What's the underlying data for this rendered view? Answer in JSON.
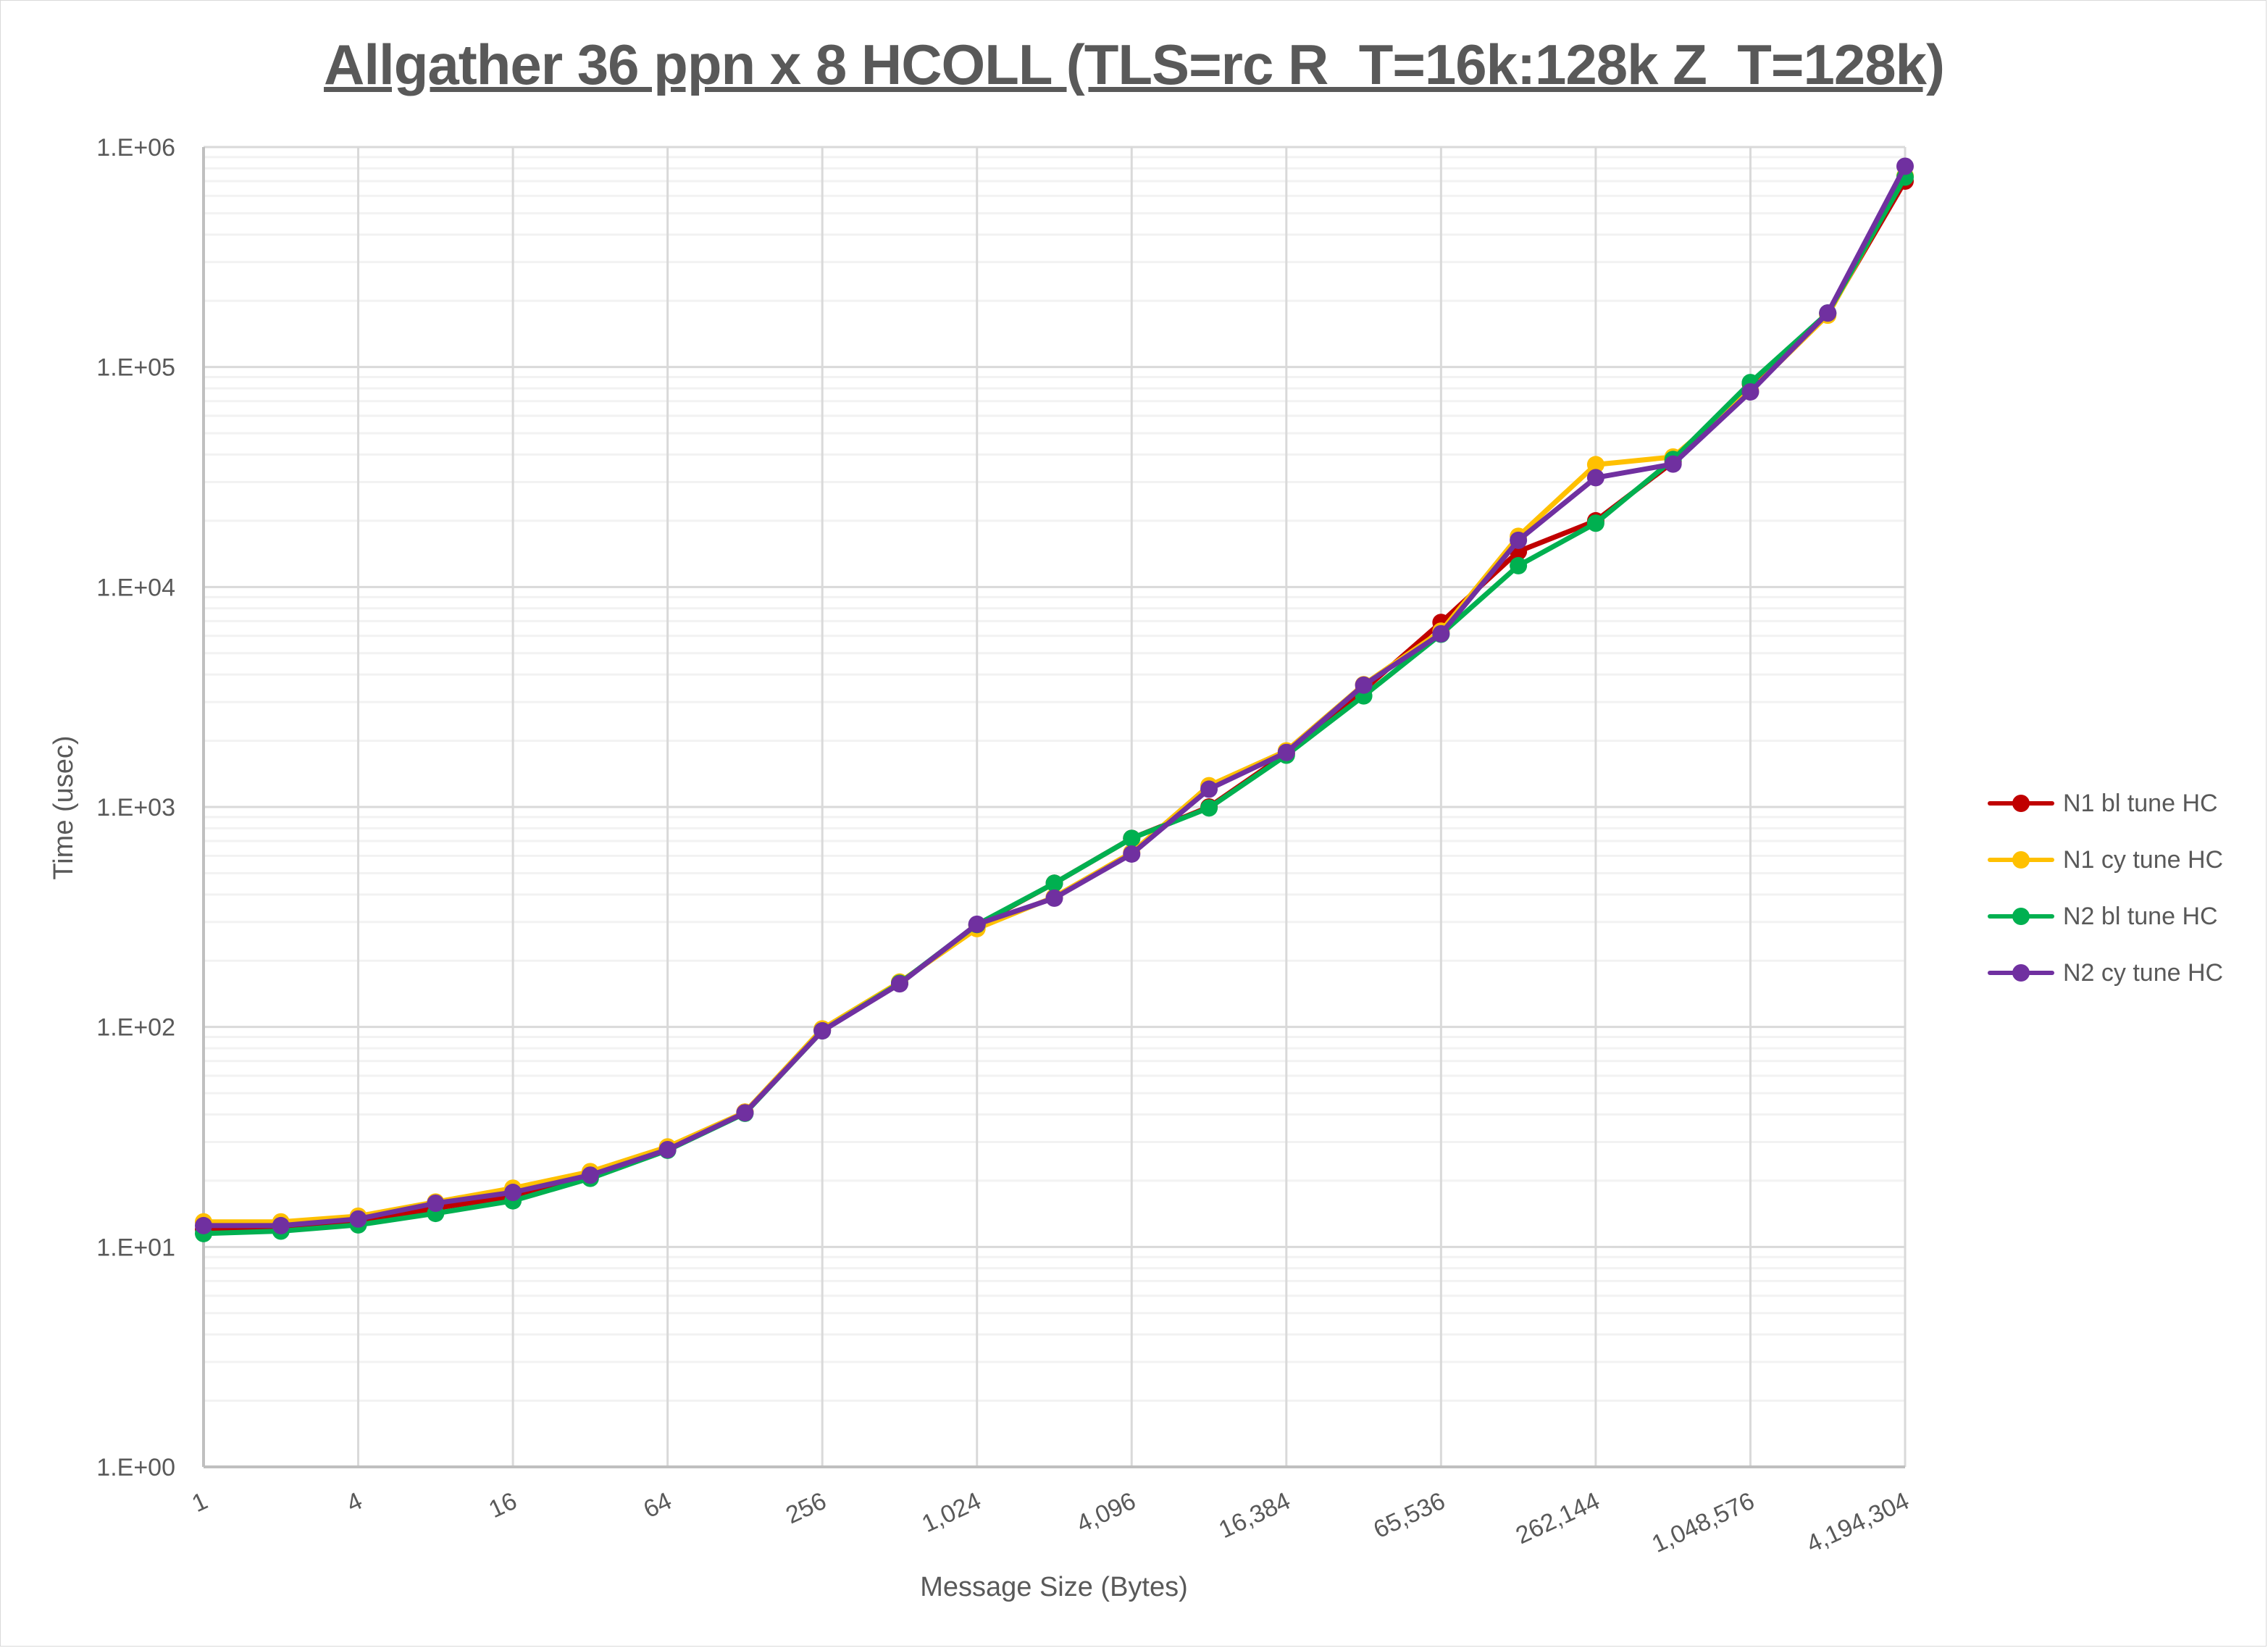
{
  "chart_data": {
    "type": "line",
    "title": "Allgather 36 ppn x 8 HCOLL (TLS=rc R_T=16k:128k Z_T=128k)",
    "xlabel": "Message Size (Bytes)",
    "ylabel": "Time (usec)",
    "xscale": "log2",
    "yscale": "log10",
    "ylim": [
      1,
      1000000
    ],
    "y_ticks": [
      "1.E+00",
      "1.E+01",
      "1.E+02",
      "1.E+03",
      "1.E+04",
      "1.E+05",
      "1.E+06"
    ],
    "x_tick_labels": [
      "1",
      "4",
      "16",
      "64",
      "256",
      "1,024",
      "4,096",
      "16,384",
      "65,536",
      "262,144",
      "1,048,576",
      "4,194,304"
    ],
    "x": [
      1,
      2,
      4,
      8,
      16,
      32,
      64,
      128,
      256,
      512,
      1024,
      2048,
      4096,
      8192,
      16384,
      32768,
      65536,
      131072,
      262144,
      524288,
      1048576,
      2097152,
      4194304
    ],
    "grid": true,
    "legend_position": "right",
    "series": [
      {
        "name": "N1 bl tune HC",
        "color": "#C00000",
        "values": [
          12.0,
          12.2,
          13.0,
          15.0,
          17.0,
          21.0,
          28.0,
          41.0,
          97.0,
          158.0,
          290.0,
          450.0,
          720.0,
          1000.0,
          1750.0,
          3400.0,
          6900.0,
          14500.0,
          20000.0,
          37000.0,
          84000.0,
          175000.0,
          700000.0
        ]
      },
      {
        "name": "N1 cy tune HC",
        "color": "#FFC000",
        "values": [
          13.0,
          13.0,
          13.8,
          16.0,
          18.5,
          22.0,
          28.5,
          41.0,
          98.0,
          160.0,
          280.0,
          390.0,
          620.0,
          1250.0,
          1800.0,
          3600.0,
          6300.0,
          17000.0,
          36000.0,
          39000.0,
          78000.0,
          172000.0,
          740000.0
        ]
      },
      {
        "name": "N2 bl tune HC",
        "color": "#00B050",
        "values": [
          11.5,
          11.8,
          12.6,
          14.2,
          16.2,
          20.5,
          27.5,
          40.5,
          96.0,
          158.0,
          292.0,
          450.0,
          720.0,
          990.0,
          1720.0,
          3200.0,
          6100.0,
          12500.0,
          19500.0,
          38000.0,
          85000.0,
          176000.0,
          730000.0
        ]
      },
      {
        "name": "N2 cy tune HC",
        "color": "#7030A0",
        "values": [
          12.5,
          12.5,
          13.4,
          15.8,
          17.7,
          21.2,
          27.7,
          40.7,
          96.0,
          157.0,
          293.0,
          385.0,
          611.0,
          1205.0,
          1770.0,
          3580.0,
          6130.0,
          16300.0,
          31400.0,
          36200.0,
          77100.0,
          176000.0,
          818000.0
        ]
      }
    ]
  }
}
